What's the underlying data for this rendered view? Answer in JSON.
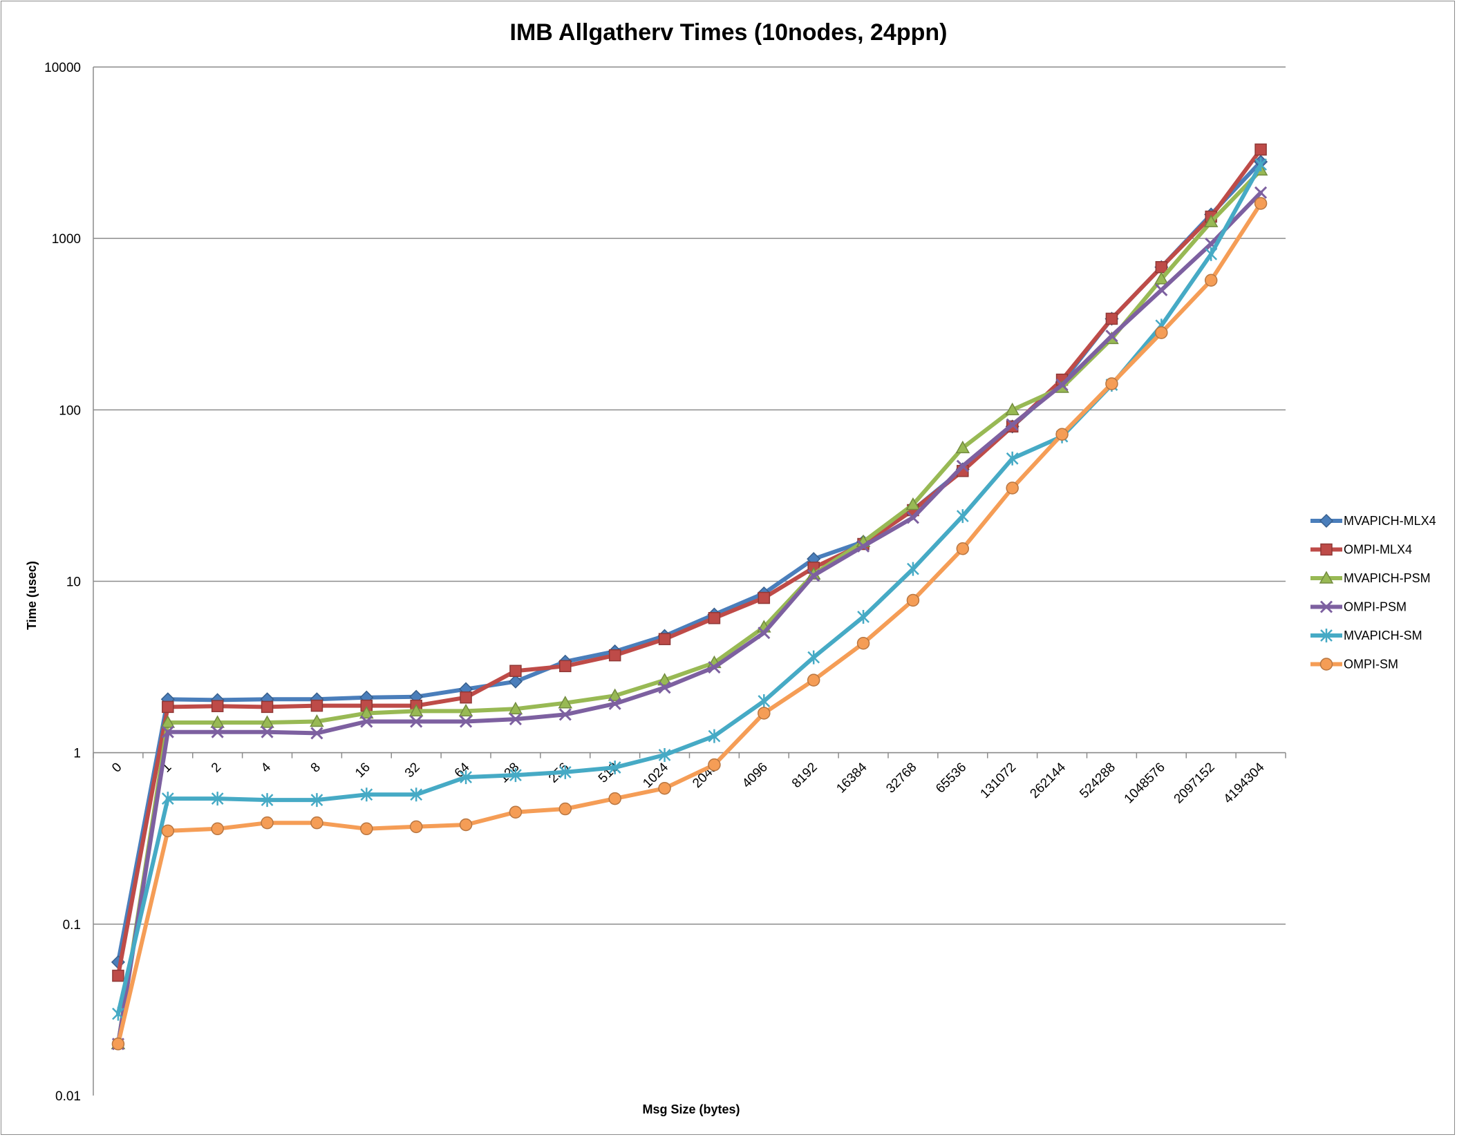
{
  "chart_data": {
    "type": "line",
    "title": "IMB Allgatherv Times (10nodes, 24ppn)",
    "xlabel": "Msg Size (bytes)",
    "ylabel": "Time (usec)",
    "yscale": "log",
    "ylim": [
      0.01,
      10000
    ],
    "yticks": [
      "10000",
      "1000",
      "100",
      "10",
      "1",
      "0.1",
      "0.01"
    ],
    "grid": "horizontal",
    "legend": "right",
    "categories": [
      "0",
      "1",
      "2",
      "4",
      "8",
      "16",
      "32",
      "64",
      "128",
      "256",
      "512",
      "1024",
      "2048",
      "4096",
      "8192",
      "16384",
      "32768",
      "65536",
      "131072",
      "262144",
      "524288",
      "1048576",
      "2097152",
      "4194304"
    ],
    "series": [
      {
        "name": "MVAPICH-MLX4",
        "color": "#4a7ebb",
        "marker": "diamond",
        "values": [
          0.06,
          2.05,
          2.03,
          2.05,
          2.05,
          2.1,
          2.12,
          2.35,
          2.6,
          3.4,
          3.9,
          4.8,
          6.4,
          8.5,
          13.5,
          17,
          26,
          45,
          80,
          145,
          340,
          680,
          1380,
          2800
        ]
      },
      {
        "name": "OMPI-MLX4",
        "color": "#be4b48",
        "marker": "square",
        "values": [
          0.05,
          1.85,
          1.87,
          1.85,
          1.88,
          1.88,
          1.88,
          2.1,
          3.0,
          3.2,
          3.7,
          4.6,
          6.1,
          8.0,
          12,
          16.5,
          26,
          44,
          80,
          150,
          340,
          680,
          1340,
          3300
        ]
      },
      {
        "name": "MVAPICH-PSM",
        "color": "#98b954",
        "marker": "triangle",
        "values": [
          0.02,
          1.5,
          1.5,
          1.5,
          1.52,
          1.7,
          1.75,
          1.75,
          1.8,
          1.95,
          2.15,
          2.65,
          3.35,
          5.4,
          11,
          17,
          28,
          60,
          100,
          135,
          260,
          580,
          1250,
          2500
        ]
      },
      {
        "name": "OMPI-PSM",
        "color": "#7d60a0",
        "marker": "x",
        "values": [
          0.02,
          1.32,
          1.32,
          1.32,
          1.3,
          1.52,
          1.52,
          1.52,
          1.57,
          1.67,
          1.93,
          2.4,
          3.15,
          5.0,
          10.8,
          16,
          23.5,
          47,
          82,
          140,
          270,
          500,
          930,
          1850
        ]
      },
      {
        "name": "MVAPICH-SM",
        "color": "#46aac5",
        "marker": "star",
        "values": [
          0.03,
          0.54,
          0.54,
          0.53,
          0.53,
          0.57,
          0.57,
          0.72,
          0.74,
          0.77,
          0.82,
          0.97,
          1.25,
          2.0,
          3.6,
          6.2,
          11.8,
          24,
          52,
          70,
          140,
          310,
          810,
          2700
        ]
      },
      {
        "name": "OMPI-SM",
        "color": "#f59d56",
        "marker": "circle",
        "values": [
          0.02,
          0.35,
          0.36,
          0.39,
          0.39,
          0.36,
          0.37,
          0.38,
          0.45,
          0.47,
          0.54,
          0.62,
          0.85,
          1.7,
          2.65,
          4.35,
          7.75,
          15.5,
          35,
          72,
          142,
          282,
          570,
          1600
        ]
      }
    ]
  }
}
